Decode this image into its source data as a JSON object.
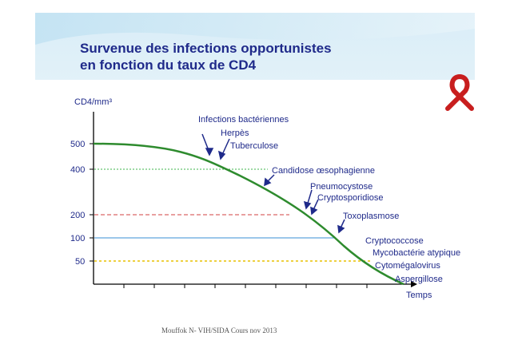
{
  "title": {
    "line1": "Survenue des infections opportunistes",
    "line2": "en fonction du taux de CD4"
  },
  "axis": {
    "y_label": "CD4/mm³",
    "x_label": "Temps",
    "y_ticks": [
      "500",
      "400",
      "200",
      "100",
      "50"
    ]
  },
  "annotations": [
    "Infections bactériennes",
    "Herpès",
    "Tuberculose",
    "Candidose œsophagienne",
    "Pneumocystose",
    "Cryptosporidiose",
    "Toxoplasmose",
    "Cryptococcose",
    "Mycobactérie atypique",
    "Cytomégalovirus",
    "Aspergillose"
  ],
  "colors": {
    "title": "#1f2a8a",
    "curve": "#2e8b2e",
    "line_400": "#3cb44b",
    "line_200": "#d04040",
    "line_100": "#3a8fd6",
    "line_50": "#e8c000",
    "ribbon": "#c81e1e"
  },
  "footer": "Mouffok N- VIH/SIDA Cours nov 2013",
  "icons": {
    "ribbon": "aids-ribbon-icon"
  }
}
